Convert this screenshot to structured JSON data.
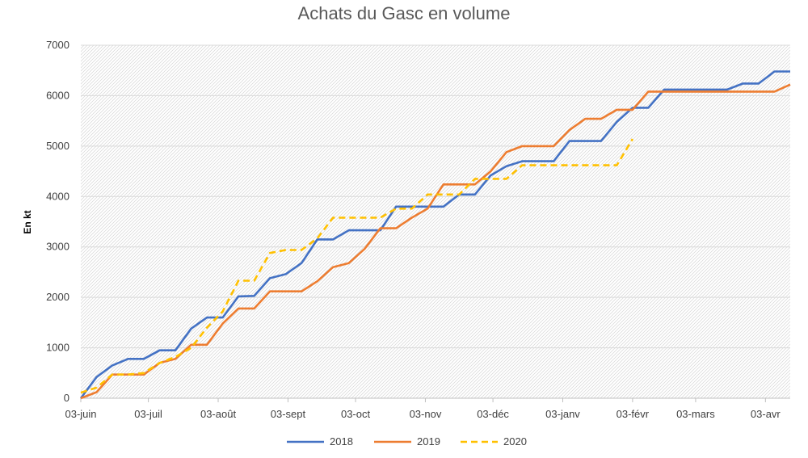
{
  "chart_data": {
    "type": "line",
    "title": "Achats du Gasc en volume",
    "xlabel": "",
    "ylabel": "En kt",
    "ylim": [
      0,
      7000
    ],
    "yticks": [
      0,
      1000,
      2000,
      3000,
      4000,
      5000,
      6000,
      7000
    ],
    "xlim": [
      0,
      315
    ],
    "x_ticks": [
      {
        "x": 0,
        "label": "03-juin"
      },
      {
        "x": 30,
        "label": "03-juil"
      },
      {
        "x": 61,
        "label": "03-août"
      },
      {
        "x": 92,
        "label": "03-sept"
      },
      {
        "x": 122,
        "label": "03-oct"
      },
      {
        "x": 153,
        "label": "03-nov"
      },
      {
        "x": 183,
        "label": "03-déc"
      },
      {
        "x": 214,
        "label": "03-janv"
      },
      {
        "x": 245,
        "label": "03-févr"
      },
      {
        "x": 273,
        "label": "03-mars"
      },
      {
        "x": 304,
        "label": "03-avr"
      }
    ],
    "grid": true,
    "plot_background": "diagonal-hatch",
    "legend_position": "bottom",
    "series": [
      {
        "name": "2018",
        "color": "#4472C4",
        "dash": "solid",
        "points": [
          [
            0,
            0
          ],
          [
            7,
            420
          ],
          [
            14,
            650
          ],
          [
            21,
            780
          ],
          [
            28,
            780
          ],
          [
            35,
            950
          ],
          [
            42,
            950
          ],
          [
            49,
            1380
          ],
          [
            56,
            1600
          ],
          [
            63,
            1600
          ],
          [
            70,
            2020
          ],
          [
            77,
            2030
          ],
          [
            84,
            2380
          ],
          [
            91,
            2460
          ],
          [
            98,
            2680
          ],
          [
            105,
            3150
          ],
          [
            112,
            3150
          ],
          [
            119,
            3330
          ],
          [
            126,
            3330
          ],
          [
            133,
            3330
          ],
          [
            140,
            3800
          ],
          [
            147,
            3800
          ],
          [
            154,
            3800
          ],
          [
            161,
            3800
          ],
          [
            168,
            4040
          ],
          [
            175,
            4040
          ],
          [
            182,
            4420
          ],
          [
            189,
            4600
          ],
          [
            196,
            4700
          ],
          [
            203,
            4700
          ],
          [
            210,
            4700
          ],
          [
            217,
            5100
          ],
          [
            224,
            5100
          ],
          [
            231,
            5100
          ],
          [
            238,
            5480
          ],
          [
            245,
            5760
          ],
          [
            252,
            5760
          ],
          [
            259,
            6120
          ],
          [
            266,
            6120
          ],
          [
            273,
            6120
          ],
          [
            280,
            6120
          ],
          [
            287,
            6120
          ],
          [
            294,
            6240
          ],
          [
            301,
            6240
          ],
          [
            308,
            6480
          ],
          [
            315,
            6480
          ]
        ]
      },
      {
        "name": "2019",
        "color": "#ED7D31",
        "dash": "solid",
        "points": [
          [
            0,
            0
          ],
          [
            7,
            120
          ],
          [
            14,
            470
          ],
          [
            21,
            470
          ],
          [
            28,
            470
          ],
          [
            35,
            700
          ],
          [
            42,
            780
          ],
          [
            49,
            1060
          ],
          [
            56,
            1060
          ],
          [
            63,
            1480
          ],
          [
            70,
            1780
          ],
          [
            77,
            1780
          ],
          [
            84,
            2120
          ],
          [
            91,
            2120
          ],
          [
            98,
            2120
          ],
          [
            105,
            2320
          ],
          [
            112,
            2600
          ],
          [
            119,
            2680
          ],
          [
            126,
            2960
          ],
          [
            133,
            3370
          ],
          [
            140,
            3370
          ],
          [
            147,
            3580
          ],
          [
            154,
            3760
          ],
          [
            161,
            4240
          ],
          [
            168,
            4240
          ],
          [
            175,
            4240
          ],
          [
            182,
            4500
          ],
          [
            189,
            4880
          ],
          [
            196,
            5000
          ],
          [
            203,
            5000
          ],
          [
            210,
            5000
          ],
          [
            217,
            5320
          ],
          [
            224,
            5540
          ],
          [
            231,
            5540
          ],
          [
            238,
            5720
          ],
          [
            245,
            5720
          ],
          [
            252,
            6080
          ],
          [
            259,
            6080
          ],
          [
            266,
            6080
          ],
          [
            273,
            6080
          ],
          [
            280,
            6080
          ],
          [
            287,
            6080
          ],
          [
            294,
            6080
          ],
          [
            301,
            6080
          ],
          [
            308,
            6080
          ],
          [
            315,
            6220
          ]
        ]
      },
      {
        "name": "2020",
        "color": "#FFC000",
        "dash": "dashed",
        "points": [
          [
            0,
            110
          ],
          [
            7,
            210
          ],
          [
            14,
            470
          ],
          [
            21,
            470
          ],
          [
            28,
            500
          ],
          [
            35,
            700
          ],
          [
            42,
            820
          ],
          [
            49,
            1000
          ],
          [
            56,
            1400
          ],
          [
            63,
            1720
          ],
          [
            70,
            2330
          ],
          [
            77,
            2330
          ],
          [
            84,
            2880
          ],
          [
            91,
            2940
          ],
          [
            98,
            2940
          ],
          [
            105,
            3170
          ],
          [
            112,
            3580
          ],
          [
            119,
            3580
          ],
          [
            126,
            3580
          ],
          [
            133,
            3580
          ],
          [
            140,
            3760
          ],
          [
            147,
            3760
          ],
          [
            154,
            4040
          ],
          [
            161,
            4040
          ],
          [
            168,
            4040
          ],
          [
            175,
            4350
          ],
          [
            182,
            4350
          ],
          [
            189,
            4350
          ],
          [
            196,
            4620
          ],
          [
            203,
            4620
          ],
          [
            210,
            4620
          ],
          [
            217,
            4620
          ],
          [
            224,
            4620
          ],
          [
            231,
            4620
          ],
          [
            238,
            4620
          ],
          [
            245,
            5140
          ]
        ]
      }
    ]
  }
}
